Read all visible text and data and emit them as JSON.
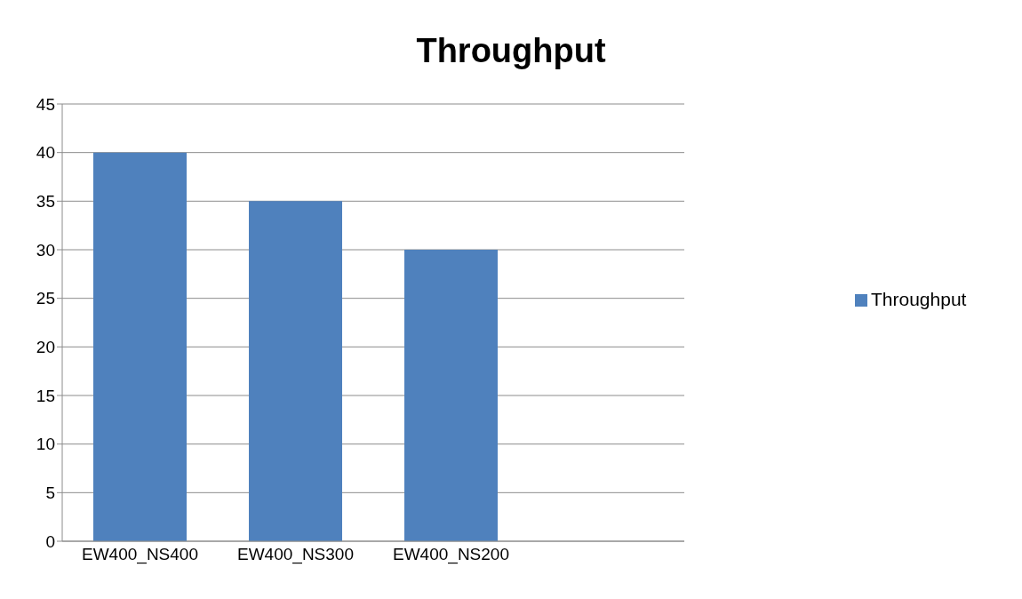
{
  "chart_data": {
    "type": "bar",
    "title": "Throughput",
    "categories": [
      "EW400_NS400",
      "EW400_NS300",
      "EW400_NS200",
      null
    ],
    "series": [
      {
        "name": "Throughput",
        "color": "#4f81bd",
        "values": [
          40,
          35,
          30,
          null
        ]
      }
    ],
    "ylim": [
      0,
      45
    ],
    "yticks": [
      0,
      5,
      10,
      15,
      20,
      25,
      30,
      35,
      40,
      45
    ],
    "grid": "y",
    "legend": "right"
  }
}
